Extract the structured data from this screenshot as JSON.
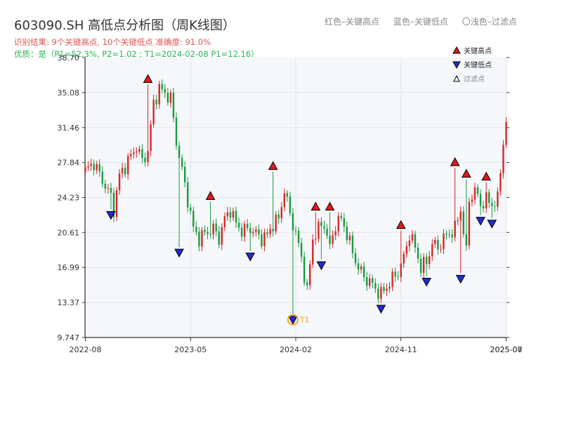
{
  "header": {
    "title": "603090.SH 高低点分析图（周K线图）",
    "subtitle1": "识别结果: 9个关键高点, 10个关键低点  准确度: 91.0%",
    "subtitle2": "优质：是（P1=52.3%, P2=1.02 ; T1=2024-02-08 P1=12.16）"
  },
  "top_legend": {
    "red": "红色–关键高点",
    "blue": "蓝色–关键低点",
    "hollow": "〇浅色–过滤点"
  },
  "colors": {
    "up": "#d62728",
    "down": "#1a9a40",
    "high_marker": "#e31a1c",
    "low_marker": "#1f2bd6",
    "t1": "#f5a623",
    "plot_bg": "#f5f7fa",
    "grid": "#e3e6ea"
  },
  "chart_data": {
    "type": "candlestick",
    "ylim": [
      9.747,
      38.7
    ],
    "y_ticks": [
      "9.747",
      "13.37",
      "16.99",
      "20.61",
      "24.23",
      "27.84",
      "31.46",
      "35.08",
      "38.70"
    ],
    "x_ticks": [
      "2022-08",
      "2023-05",
      "2024-02",
      "2024-11",
      "2025-07",
      "2025-08"
    ],
    "x_tick_pos": [
      0,
      37,
      74,
      111,
      148,
      148
    ],
    "weeks": 149,
    "close_path": [
      [
        0,
        27.0
      ],
      [
        3,
        27.8
      ],
      [
        6,
        26.0
      ],
      [
        9,
        24.3
      ],
      [
        10,
        23.0
      ],
      [
        12,
        26.5
      ],
      [
        15,
        28.0
      ],
      [
        18,
        29.5
      ],
      [
        20,
        28.0
      ],
      [
        22,
        29.0
      ],
      [
        24,
        34.0
      ],
      [
        26,
        35.5
      ],
      [
        28,
        35.0
      ],
      [
        30,
        34.5
      ],
      [
        32,
        30.0
      ],
      [
        34,
        27.0
      ],
      [
        36,
        24.0
      ],
      [
        38,
        21.0
      ],
      [
        40,
        20.0
      ],
      [
        42,
        20.5
      ],
      [
        45,
        21.0
      ],
      [
        47,
        20.0
      ],
      [
        49,
        22.0
      ],
      [
        51,
        23.0
      ],
      [
        53,
        21.5
      ],
      [
        55,
        20.8
      ],
      [
        58,
        21.0
      ],
      [
        60,
        20.5
      ],
      [
        62,
        20.0
      ],
      [
        64,
        20.3
      ],
      [
        66,
        21.5
      ],
      [
        68,
        22.0
      ],
      [
        70,
        25.0
      ],
      [
        72,
        22.5
      ],
      [
        74,
        20.5
      ],
      [
        76,
        18.0
      ],
      [
        78,
        14.5
      ],
      [
        80,
        20.0
      ],
      [
        82,
        21.0
      ],
      [
        84,
        21.5
      ],
      [
        86,
        19.0
      ],
      [
        88,
        21.5
      ],
      [
        90,
        22.0
      ],
      [
        92,
        20.5
      ],
      [
        94,
        18.5
      ],
      [
        96,
        17.0
      ],
      [
        98,
        16.0
      ],
      [
        100,
        15.5
      ],
      [
        102,
        14.8
      ],
      [
        104,
        14.2
      ],
      [
        106,
        15.0
      ],
      [
        108,
        15.8
      ],
      [
        110,
        16.5
      ],
      [
        112,
        18.0
      ],
      [
        114,
        20.5
      ],
      [
        116,
        19.0
      ],
      [
        118,
        17.0
      ],
      [
        120,
        17.5
      ],
      [
        122,
        19.5
      ],
      [
        124,
        19.0
      ],
      [
        126,
        20.0
      ],
      [
        128,
        20.5
      ],
      [
        130,
        21.0
      ],
      [
        132,
        23.0
      ],
      [
        134,
        18.5
      ],
      [
        135,
        24.0
      ],
      [
        137,
        25.0
      ],
      [
        139,
        23.5
      ],
      [
        141,
        24.0
      ],
      [
        143,
        23.5
      ],
      [
        145,
        24.0
      ],
      [
        147,
        30.0
      ],
      [
        148,
        32.0
      ]
    ],
    "key_highs": [
      {
        "week": 22,
        "price": 35.9
      },
      {
        "week": 44,
        "price": 23.8
      },
      {
        "week": 66,
        "price": 26.9
      },
      {
        "week": 81,
        "price": 22.7
      },
      {
        "week": 86,
        "price": 22.7
      },
      {
        "week": 111,
        "price": 20.8
      },
      {
        "week": 130,
        "price": 27.3
      },
      {
        "week": 134,
        "price": 26.1
      },
      {
        "week": 141,
        "price": 25.8
      }
    ],
    "key_lows": [
      {
        "week": 9,
        "price": 23.0
      },
      {
        "week": 33,
        "price": 19.1
      },
      {
        "week": 58,
        "price": 18.7
      },
      {
        "week": 73,
        "price": 12.16
      },
      {
        "week": 83,
        "price": 17.8
      },
      {
        "week": 104,
        "price": 13.3
      },
      {
        "week": 120,
        "price": 16.1
      },
      {
        "week": 132,
        "price": 16.4
      },
      {
        "week": 139,
        "price": 22.4
      },
      {
        "week": 143,
        "price": 22.1
      }
    ],
    "t1": {
      "week": 73,
      "price": 12.16,
      "label": "T1"
    },
    "legend": [
      "关键高点",
      "关键低点",
      "过滤点"
    ]
  }
}
